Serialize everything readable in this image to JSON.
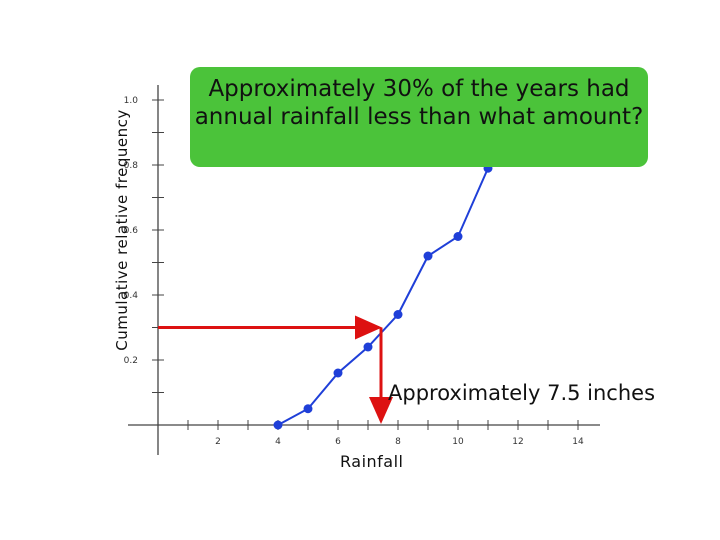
{
  "chart_data": {
    "type": "line",
    "title": "",
    "xlabel": "Rainfall",
    "ylabel": "Cumulative relative frequency",
    "xlim": [
      0,
      14
    ],
    "ylim": [
      0,
      1.0
    ],
    "x_ticks": [
      2,
      4,
      6,
      8,
      10,
      12,
      14
    ],
    "x_tick_labels": [
      "2",
      "4",
      "6",
      "8",
      "10",
      "12",
      "14"
    ],
    "y_ticks": [
      0.2,
      0.4,
      0.6,
      0.8,
      1.0
    ],
    "y_tick_labels": [
      "0.2",
      "0.4",
      "0.6",
      "0.8",
      "1.0"
    ],
    "series": [
      {
        "color": "#1f3fd8",
        "x": [
          4,
          5,
          6,
          7,
          8,
          9,
          10,
          11
        ],
        "y": [
          0.0,
          0.05,
          0.16,
          0.24,
          0.34,
          0.52,
          0.58,
          0.79
        ]
      }
    ],
    "annotation_lines": {
      "y_level": 0.3,
      "x_value": 7.5,
      "color": "#dd1111"
    }
  },
  "question_text": "Approximately 30% of the years had annual rainfall less than what amount?",
  "answer_text": "Approximately 7.5 inches",
  "colors": {
    "question_bg": "#4bc33a",
    "axis": "#444444"
  }
}
